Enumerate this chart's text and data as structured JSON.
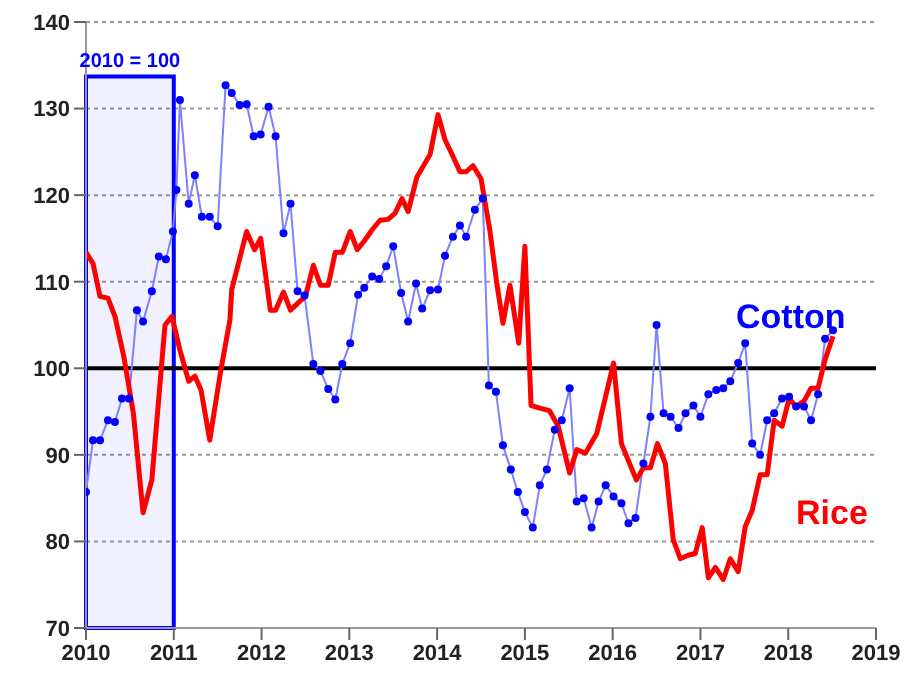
{
  "chart_data": {
    "type": "line",
    "xlim": [
      2010,
      2019
    ],
    "xticks": [
      2010,
      2011,
      2012,
      2013,
      2014,
      2015,
      2016,
      2017,
      2018,
      2019
    ],
    "ylim": [
      70,
      140
    ],
    "yticks": [
      70,
      80,
      90,
      100,
      110,
      120,
      130,
      140
    ],
    "grid": "y",
    "legend": false,
    "ref_lines": [
      {
        "axis": "y",
        "value": 100,
        "color": "#000000"
      }
    ],
    "bands": [
      {
        "axis": "x",
        "from": 2010,
        "to": 2011,
        "label": "2010 = 100",
        "color": "#0000ff"
      }
    ],
    "series": [
      {
        "name": "Cotton",
        "color": "#8080ff",
        "marker": "circle",
        "x": [
          2010.0,
          2010.08,
          2010.16,
          2010.25,
          2010.33,
          2010.41,
          2010.49,
          2010.58,
          2010.65,
          2010.75,
          2010.83,
          2010.91,
          2010.99,
          2011.03,
          2011.07,
          2011.17,
          2011.24,
          2011.32,
          2011.41,
          2011.5,
          2011.59,
          2011.66,
          2011.75,
          2011.83,
          2011.91,
          2011.99,
          2012.08,
          2012.16,
          2012.25,
          2012.33,
          2012.41,
          2012.49,
          2012.59,
          2012.67,
          2012.76,
          2012.84,
          2012.92,
          2013.01,
          2013.1,
          2013.17,
          2013.26,
          2013.34,
          2013.42,
          2013.5,
          2013.59,
          2013.67,
          2013.76,
          2013.83,
          2013.92,
          2014.01,
          2014.09,
          2014.18,
          2014.26,
          2014.33,
          2014.43,
          2014.52,
          2014.59,
          2014.67,
          2014.75,
          2014.84,
          2014.92,
          2015.0,
          2015.09,
          2015.17,
          2015.25,
          2015.34,
          2015.42,
          2015.51,
          2015.59,
          2015.67,
          2015.76,
          2015.84,
          2015.92,
          2016.01,
          2016.1,
          2016.18,
          2016.26,
          2016.35,
          2016.43,
          2016.5,
          2016.58,
          2016.66,
          2016.75,
          2016.83,
          2016.92,
          2017.0,
          2017.09,
          2017.18,
          2017.26,
          2017.34,
          2017.43,
          2017.51,
          2017.59,
          2017.68,
          2017.76,
          2017.84,
          2017.93,
          2018.01,
          2018.09,
          2018.18,
          2018.26,
          2018.34,
          2018.42,
          2018.51
        ],
        "values": [
          85.7,
          91.7,
          91.7,
          94,
          93.8,
          96.5,
          96.5,
          106.7,
          105.4,
          108.9,
          112.9,
          112.6,
          115.8,
          120.6,
          131,
          119,
          122.3,
          117.5,
          117.5,
          116.4,
          132.7,
          131.8,
          130.4,
          130.5,
          126.8,
          127,
          130.2,
          126.8,
          115.6,
          119,
          108.9,
          108.4,
          100.5,
          99.7,
          97.6,
          96.4,
          100.5,
          102.9,
          108.5,
          109.3,
          110.6,
          110.3,
          111.8,
          114.1,
          108.7,
          105.4,
          109.8,
          106.9,
          109,
          109.1,
          113,
          115.2,
          116.5,
          115.2,
          118.3,
          119.6,
          98,
          97.3,
          91.1,
          88.3,
          85.7,
          83.4,
          81.6,
          86.5,
          88.3,
          92.9,
          94,
          97.7,
          84.6,
          85,
          81.6,
          84.6,
          86.5,
          85.2,
          84.4,
          82.1,
          82.7,
          89,
          94.4,
          105,
          94.8,
          94.4,
          93.1,
          94.8,
          95.7,
          94.4,
          97,
          97.5,
          97.7,
          98.5,
          100.6,
          102.9,
          91.3,
          90,
          94,
          94.8,
          96.5,
          96.7,
          95.6,
          95.6,
          94,
          97,
          103.4,
          104.4
        ]
      },
      {
        "name": "Rice",
        "color": "#ff0000",
        "marker": "none",
        "x": [
          2010.0,
          2010.08,
          2010.16,
          2010.25,
          2010.33,
          2010.43,
          2010.54,
          2010.65,
          2010.75,
          2010.9,
          2010.98,
          2011.07,
          2011.17,
          2011.24,
          2011.31,
          2011.41,
          2011.53,
          2011.64,
          2011.66,
          2011.83,
          2011.92,
          2011.99,
          2012.1,
          2012.16,
          2012.25,
          2012.33,
          2012.41,
          2012.5,
          2012.59,
          2012.67,
          2012.76,
          2012.84,
          2012.92,
          2013.01,
          2013.09,
          2013.17,
          2013.26,
          2013.35,
          2013.44,
          2013.52,
          2013.6,
          2013.67,
          2013.77,
          2013.92,
          2014.01,
          2014.09,
          2014.18,
          2014.26,
          2014.33,
          2014.41,
          2014.5,
          2014.6,
          2014.68,
          2014.75,
          2014.83,
          2014.93,
          2015.0,
          2015.07,
          2015.17,
          2015.28,
          2015.38,
          2015.51,
          2015.59,
          2015.69,
          2015.82,
          2016.01,
          2016.1,
          2016.27,
          2016.35,
          2016.43,
          2016.51,
          2016.6,
          2016.69,
          2016.77,
          2016.86,
          2016.94,
          2017.02,
          2017.09,
          2017.17,
          2017.26,
          2017.34,
          2017.43,
          2017.51,
          2017.59,
          2017.68,
          2017.76,
          2017.84,
          2017.93,
          2018.01,
          2018.09,
          2018.18,
          2018.26,
          2018.34,
          2018.42,
          2018.51
        ],
        "values": [
          113.4,
          112.1,
          108.3,
          108.1,
          106,
          101.4,
          94.8,
          83.3,
          87.1,
          105,
          106,
          102.1,
          98.5,
          99.1,
          97.5,
          91.7,
          99.4,
          105.6,
          109.1,
          115.8,
          113.7,
          115,
          106.7,
          106.7,
          108.8,
          106.7,
          107.5,
          108.3,
          111.9,
          109.6,
          109.6,
          113.4,
          113.4,
          115.8,
          113.7,
          114.7,
          116,
          117.1,
          117.2,
          117.9,
          119.6,
          118.1,
          122.1,
          124.7,
          129.3,
          126.4,
          124.5,
          122.7,
          122.7,
          123.4,
          121.9,
          116,
          109.8,
          105.2,
          109.6,
          102.9,
          114.1,
          95.7,
          95.4,
          95.1,
          93.3,
          87.9,
          90.6,
          90.2,
          92.5,
          100.6,
          91.3,
          87.1,
          88.5,
          88.5,
          91.3,
          89,
          80.2,
          78,
          78.4,
          78.6,
          81.6,
          75.8,
          77,
          75.6,
          78,
          76.5,
          81.7,
          83.6,
          87.7,
          87.7,
          94,
          93.3,
          96.5,
          95.6,
          96.2,
          97.7,
          97.7,
          101,
          103.7
        ]
      }
    ]
  }
}
